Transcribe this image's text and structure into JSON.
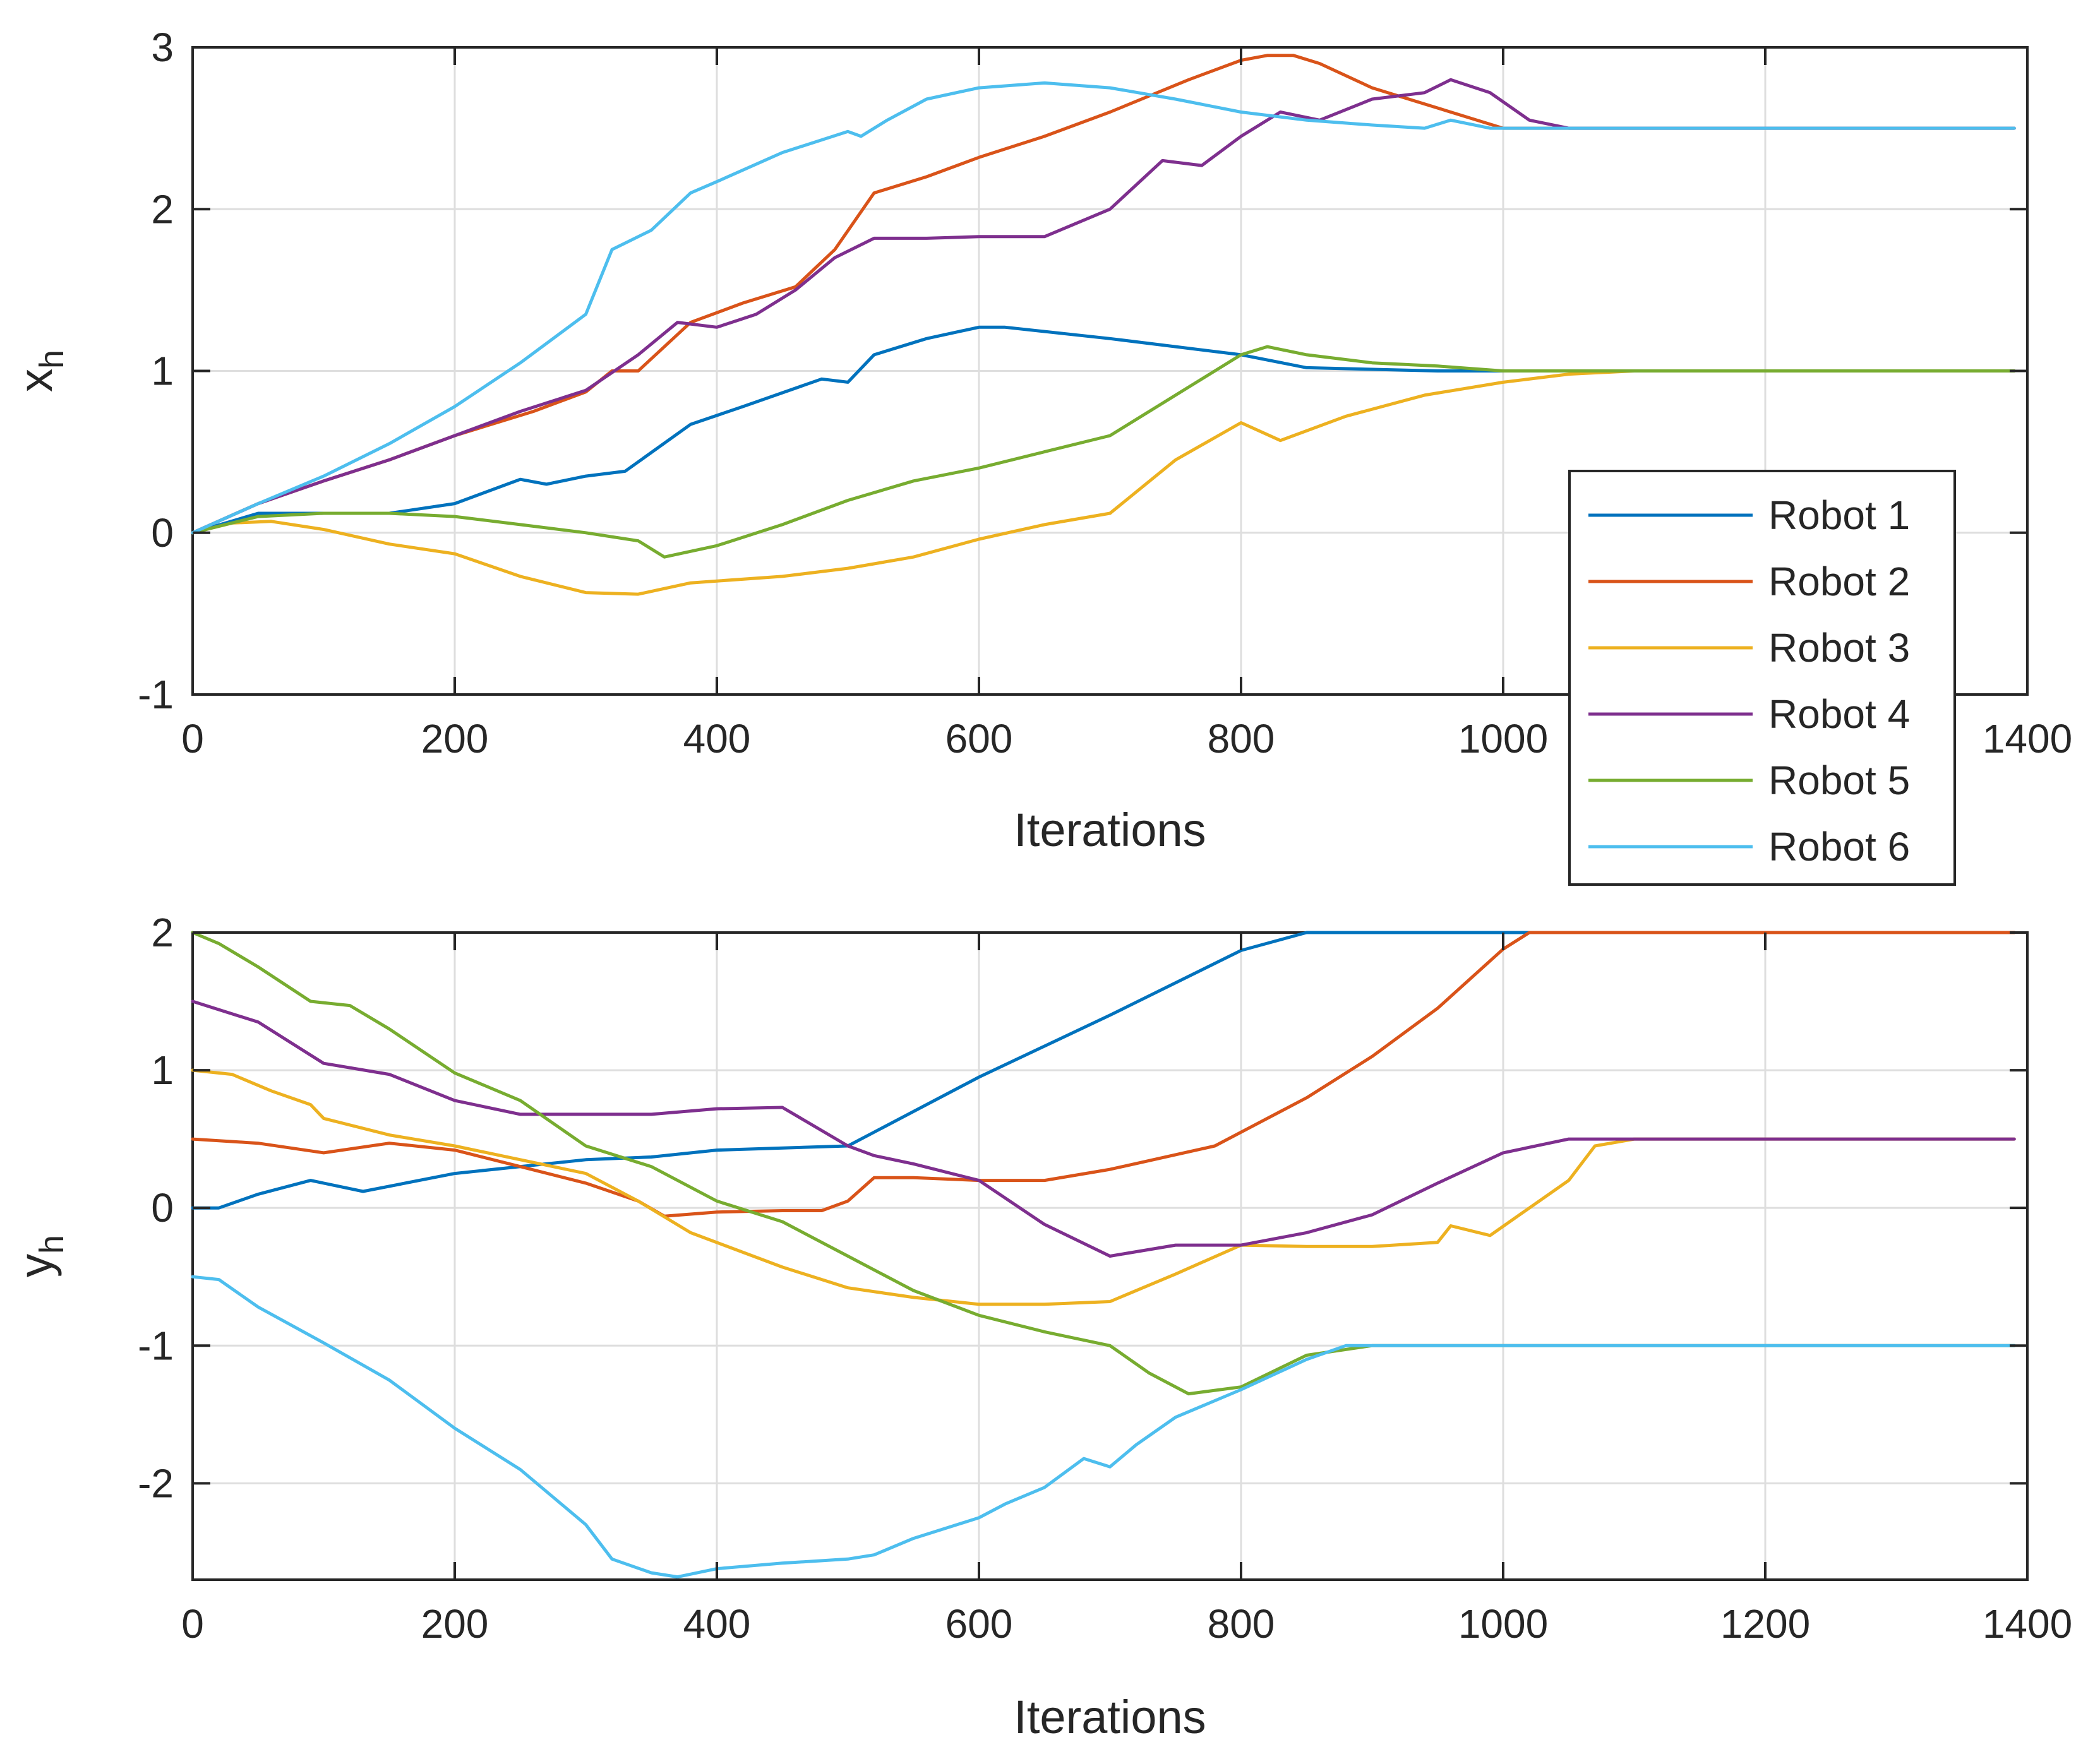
{
  "legend": {
    "entries": [
      {
        "label": "Robot 1",
        "color": "#0072BD"
      },
      {
        "label": "Robot 2",
        "color": "#D95319"
      },
      {
        "label": "Robot 3",
        "color": "#EDB120"
      },
      {
        "label": "Robot 4",
        "color": "#7E2F8E"
      },
      {
        "label": "Robot 5",
        "color": "#77AC30"
      },
      {
        "label": "Robot 6",
        "color": "#4DBEEE"
      }
    ],
    "placement": "right, overlapping lower plot"
  },
  "chart_data": [
    {
      "type": "line",
      "title": "",
      "xlabel": "Iterations",
      "ylabel": "x",
      "ylabel_subscript": "h",
      "xlim": [
        0,
        1400
      ],
      "ylim": [
        -1,
        3
      ],
      "xticks": [
        0,
        200,
        400,
        600,
        800,
        1000,
        1200,
        1400
      ],
      "xtick_labels": [
        "0",
        "200",
        "400",
        "600",
        "800",
        "1000",
        "1200",
        "1400"
      ],
      "yticks": [
        -1,
        0,
        1,
        2,
        3
      ],
      "ytick_labels": [
        "-1",
        "0",
        "1",
        "2",
        "3"
      ],
      "grid": true,
      "series": [
        {
          "name": "Robot 1",
          "color": "#0072BD",
          "x": [
            0,
            50,
            100,
            150,
            200,
            250,
            270,
            300,
            330,
            380,
            420,
            480,
            500,
            520,
            560,
            600,
            620,
            700,
            800,
            850,
            950,
            1050,
            1200,
            1390
          ],
          "y": [
            0,
            0.12,
            0.12,
            0.12,
            0.18,
            0.33,
            0.3,
            0.35,
            0.38,
            0.67,
            0.78,
            0.95,
            0.93,
            1.1,
            1.2,
            1.27,
            1.27,
            1.2,
            1.1,
            1.02,
            1.0,
            1.0,
            1.0,
            1.0
          ]
        },
        {
          "name": "Robot 2",
          "color": "#D95319",
          "x": [
            0,
            50,
            100,
            150,
            200,
            260,
            300,
            320,
            340,
            380,
            420,
            460,
            490,
            520,
            560,
            600,
            650,
            700,
            760,
            800,
            820,
            840,
            860,
            900,
            960,
            1000,
            1050,
            1200,
            1390
          ],
          "y": [
            0,
            0.18,
            0.32,
            0.45,
            0.6,
            0.75,
            0.87,
            1.0,
            1.0,
            1.3,
            1.42,
            1.52,
            1.75,
            2.1,
            2.2,
            2.32,
            2.45,
            2.6,
            2.8,
            2.92,
            2.95,
            2.95,
            2.9,
            2.75,
            2.6,
            2.5,
            2.5,
            2.5,
            2.5
          ]
        },
        {
          "name": "Robot 3",
          "color": "#EDB120",
          "x": [
            0,
            30,
            60,
            100,
            150,
            200,
            250,
            300,
            340,
            380,
            450,
            500,
            550,
            600,
            650,
            700,
            750,
            800,
            830,
            880,
            940,
            1000,
            1050,
            1100,
            1200,
            1390
          ],
          "y": [
            0,
            0.06,
            0.07,
            0.02,
            -0.07,
            -0.13,
            -0.27,
            -0.37,
            -0.38,
            -0.31,
            -0.27,
            -0.22,
            -0.15,
            -0.04,
            0.05,
            0.12,
            0.45,
            0.68,
            0.57,
            0.72,
            0.85,
            0.93,
            0.98,
            1.0,
            1.0,
            1.0
          ]
        },
        {
          "name": "Robot 4",
          "color": "#7E2F8E",
          "x": [
            0,
            50,
            100,
            150,
            200,
            250,
            300,
            340,
            370,
            400,
            430,
            460,
            490,
            520,
            560,
            600,
            650,
            700,
            740,
            770,
            800,
            830,
            860,
            900,
            940,
            960,
            990,
            1020,
            1050,
            1200,
            1390
          ],
          "y": [
            0,
            0.18,
            0.32,
            0.45,
            0.6,
            0.75,
            0.88,
            1.1,
            1.3,
            1.27,
            1.35,
            1.5,
            1.7,
            1.82,
            1.82,
            1.83,
            1.83,
            2.0,
            2.3,
            2.27,
            2.45,
            2.6,
            2.55,
            2.68,
            2.72,
            2.8,
            2.72,
            2.55,
            2.5,
            2.5,
            2.5
          ]
        },
        {
          "name": "Robot 5",
          "color": "#77AC30",
          "x": [
            0,
            50,
            100,
            150,
            200,
            250,
            300,
            340,
            360,
            400,
            450,
            500,
            550,
            600,
            650,
            700,
            750,
            800,
            820,
            850,
            900,
            950,
            1000,
            1050,
            1200,
            1390
          ],
          "y": [
            0,
            0.1,
            0.12,
            0.12,
            0.1,
            0.05,
            0.0,
            -0.05,
            -0.15,
            -0.08,
            0.05,
            0.2,
            0.32,
            0.4,
            0.5,
            0.6,
            0.85,
            1.1,
            1.15,
            1.1,
            1.05,
            1.03,
            1.0,
            1.0,
            1.0,
            1.0
          ]
        },
        {
          "name": "Robot 6",
          "color": "#4DBEEE",
          "x": [
            0,
            50,
            100,
            150,
            200,
            250,
            300,
            320,
            350,
            380,
            400,
            450,
            500,
            510,
            530,
            560,
            600,
            650,
            700,
            750,
            800,
            850,
            900,
            940,
            960,
            990,
            1050,
            1200,
            1390
          ],
          "y": [
            0,
            0.18,
            0.35,
            0.55,
            0.78,
            1.05,
            1.35,
            1.75,
            1.87,
            2.1,
            2.17,
            2.35,
            2.48,
            2.45,
            2.55,
            2.68,
            2.75,
            2.78,
            2.75,
            2.68,
            2.6,
            2.55,
            2.52,
            2.5,
            2.55,
            2.5,
            2.5,
            2.5,
            2.5
          ]
        }
      ]
    },
    {
      "type": "line",
      "title": "",
      "xlabel": "Iterations",
      "ylabel": "y",
      "ylabel_subscript": "h",
      "xlim": [
        0,
        1400
      ],
      "ylim": [
        -2.7,
        2
      ],
      "xticks": [
        0,
        200,
        400,
        600,
        800,
        1000,
        1200,
        1400
      ],
      "xtick_labels": [
        "0",
        "200",
        "400",
        "600",
        "800",
        "1000",
        "1200",
        "1400"
      ],
      "yticks": [
        -2,
        -1,
        0,
        1,
        2
      ],
      "ytick_labels": [
        "-2",
        "-1",
        "0",
        "1",
        "2"
      ],
      "grid": true,
      "series": [
        {
          "name": "Robot 1",
          "color": "#0072BD",
          "x": [
            0,
            20,
            50,
            90,
            130,
            200,
            300,
            350,
            400,
            500,
            520,
            600,
            700,
            800,
            850,
            880,
            1000,
            1100,
            1390
          ],
          "y": [
            0,
            0,
            0.1,
            0.2,
            0.12,
            0.25,
            0.35,
            0.37,
            0.42,
            0.45,
            0.55,
            0.95,
            1.4,
            1.87,
            2.0,
            2.0,
            2.0,
            2.0,
            2.0
          ]
        },
        {
          "name": "Robot 2",
          "color": "#D95319",
          "x": [
            0,
            50,
            100,
            150,
            200,
            250,
            300,
            340,
            360,
            400,
            450,
            480,
            500,
            520,
            550,
            600,
            650,
            700,
            780,
            850,
            900,
            950,
            1000,
            1020,
            1200,
            1390
          ],
          "y": [
            0.5,
            0.47,
            0.4,
            0.47,
            0.42,
            0.3,
            0.18,
            0.05,
            -0.06,
            -0.03,
            -0.02,
            -0.02,
            0.05,
            0.22,
            0.22,
            0.2,
            0.2,
            0.28,
            0.45,
            0.8,
            1.1,
            1.45,
            1.88,
            2.0,
            2.0,
            2.0
          ]
        },
        {
          "name": "Robot 3",
          "color": "#EDB120",
          "x": [
            0,
            30,
            60,
            90,
            100,
            150,
            200,
            250,
            300,
            340,
            380,
            450,
            500,
            550,
            600,
            650,
            700,
            750,
            800,
            850,
            900,
            950,
            960,
            990,
            1050,
            1070,
            1100,
            1200,
            1390
          ],
          "y": [
            1.0,
            0.97,
            0.85,
            0.75,
            0.65,
            0.53,
            0.45,
            0.35,
            0.25,
            0.05,
            -0.18,
            -0.43,
            -0.58,
            -0.65,
            -0.7,
            -0.7,
            -0.68,
            -0.48,
            -0.27,
            -0.28,
            -0.28,
            -0.25,
            -0.13,
            -0.2,
            0.2,
            0.45,
            0.5,
            0.5,
            0.5
          ]
        },
        {
          "name": "Robot 4",
          "color": "#7E2F8E",
          "x": [
            0,
            50,
            100,
            150,
            200,
            250,
            300,
            350,
            400,
            450,
            500,
            520,
            550,
            600,
            650,
            700,
            750,
            800,
            850,
            900,
            950,
            1000,
            1050,
            1200,
            1390
          ],
          "y": [
            1.5,
            1.35,
            1.05,
            0.97,
            0.78,
            0.68,
            0.68,
            0.68,
            0.72,
            0.73,
            0.45,
            0.38,
            0.32,
            0.2,
            -0.12,
            -0.35,
            -0.27,
            -0.27,
            -0.18,
            -0.05,
            0.18,
            0.4,
            0.5,
            0.5,
            0.5
          ]
        },
        {
          "name": "Robot 5",
          "color": "#77AC30",
          "x": [
            0,
            20,
            50,
            90,
            120,
            150,
            200,
            250,
            300,
            350,
            400,
            450,
            500,
            550,
            600,
            650,
            700,
            730,
            760,
            800,
            850,
            900,
            950,
            1050,
            1200,
            1390
          ],
          "y": [
            2.0,
            1.92,
            1.75,
            1.5,
            1.47,
            1.3,
            0.98,
            0.78,
            0.45,
            0.3,
            0.05,
            -0.1,
            -0.35,
            -0.6,
            -0.78,
            -0.9,
            -1.0,
            -1.2,
            -1.35,
            -1.3,
            -1.07,
            -1.0,
            -1.0,
            -1.0,
            -1.0,
            -1.0
          ]
        },
        {
          "name": "Robot 6",
          "color": "#4DBEEE",
          "x": [
            0,
            20,
            50,
            100,
            150,
            200,
            250,
            300,
            320,
            350,
            370,
            400,
            450,
            500,
            520,
            550,
            600,
            620,
            650,
            680,
            700,
            720,
            750,
            800,
            850,
            880,
            900,
            950,
            1000,
            1200,
            1390
          ],
          "y": [
            -0.5,
            -0.52,
            -0.72,
            -0.98,
            -1.25,
            -1.6,
            -1.9,
            -2.3,
            -2.55,
            -2.65,
            -2.68,
            -2.62,
            -2.58,
            -2.55,
            -2.52,
            -2.4,
            -2.25,
            -2.15,
            -2.03,
            -1.82,
            -1.88,
            -1.72,
            -1.52,
            -1.32,
            -1.1,
            -1.0,
            -1.0,
            -1.0,
            -1.0,
            -1.0,
            -1.0
          ]
        }
      ]
    }
  ]
}
